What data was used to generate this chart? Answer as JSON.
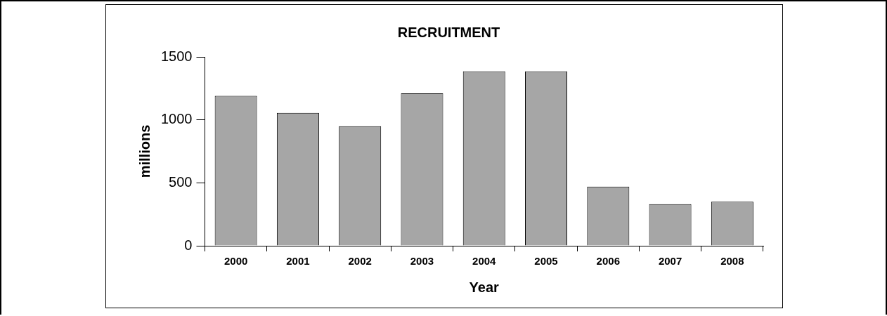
{
  "chart_data": {
    "type": "bar",
    "title": "RECRUITMENT",
    "xlabel": "Year",
    "ylabel": "millions",
    "categories": [
      "2000",
      "2001",
      "2002",
      "2003",
      "2004",
      "2005",
      "2006",
      "2007",
      "2008"
    ],
    "values": [
      1190,
      1055,
      950,
      1210,
      1385,
      1385,
      470,
      330,
      350
    ],
    "color": "#a6a6a6",
    "ylim": [
      0,
      1500
    ],
    "yticks": [
      0,
      500,
      1000,
      1500
    ],
    "grid": false,
    "legend": false
  }
}
